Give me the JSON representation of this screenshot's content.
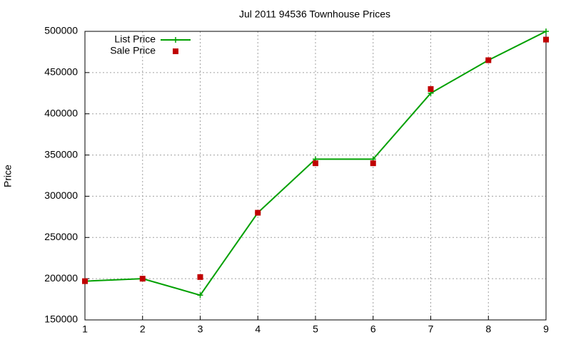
{
  "chart_data": {
    "type": "line",
    "title": "Jul 2011 94536 Townhouse Prices",
    "y_label": "Price",
    "x": [
      1,
      2,
      3,
      4,
      5,
      6,
      7,
      8,
      9
    ],
    "series": [
      {
        "name": "List Price",
        "color": "#00a000",
        "style": "linespoints",
        "values": [
          197000,
          200000,
          180000,
          280000,
          345000,
          345000,
          425000,
          465000,
          500000
        ]
      },
      {
        "name": "Sale Price",
        "color": "#c00000",
        "style": "points",
        "values": [
          197000,
          200000,
          202000,
          280000,
          340000,
          340000,
          430000,
          465000,
          490000
        ]
      }
    ],
    "xlim": [
      1,
      9
    ],
    "xticks": [
      1,
      2,
      3,
      4,
      5,
      6,
      7,
      8,
      9
    ],
    "ylim": [
      150000,
      500000
    ],
    "yticks": [
      150000,
      200000,
      250000,
      300000,
      350000,
      400000,
      450000,
      500000
    ],
    "grid": true,
    "legend": "top-left"
  }
}
